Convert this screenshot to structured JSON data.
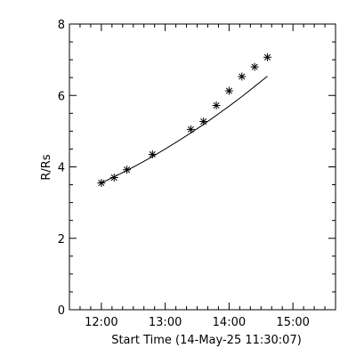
{
  "chart_data": {
    "type": "scatter",
    "title": "",
    "xlabel": "Start Time (14-May-25 11:30:07)",
    "ylabel": "R/Rs",
    "x_unit": "HH:MM",
    "xlim": [
      "11:30",
      "15:40"
    ],
    "ylim": [
      0,
      8
    ],
    "x_ticks": [
      "12:00",
      "13:00",
      "14:00",
      "15:00"
    ],
    "y_ticks": [
      "0",
      "2",
      "4",
      "6",
      "8"
    ],
    "grid": false,
    "legend": "none",
    "marker": "asterisk",
    "series": [
      {
        "x": [
          "12:00",
          "12:12",
          "12:24",
          "12:48",
          "13:24",
          "13:36",
          "13:48",
          "14:00",
          "14:12",
          "14:24",
          "14:36"
        ],
        "y": [
          3.55,
          3.7,
          3.92,
          4.35,
          5.05,
          5.27,
          5.72,
          6.13,
          6.53,
          6.8,
          7.07
        ]
      }
    ],
    "fit": {
      "x": [
        "12:00",
        "12:12",
        "12:24",
        "12:36",
        "12:48",
        "13:00",
        "13:12",
        "13:24",
        "13:36",
        "13:48",
        "14:00",
        "14:12",
        "14:24",
        "14:36"
      ],
      "y": [
        3.55,
        3.72,
        3.9,
        4.09,
        4.29,
        4.5,
        4.72,
        4.95,
        5.19,
        5.44,
        5.7,
        5.97,
        6.25,
        6.54
      ]
    }
  }
}
